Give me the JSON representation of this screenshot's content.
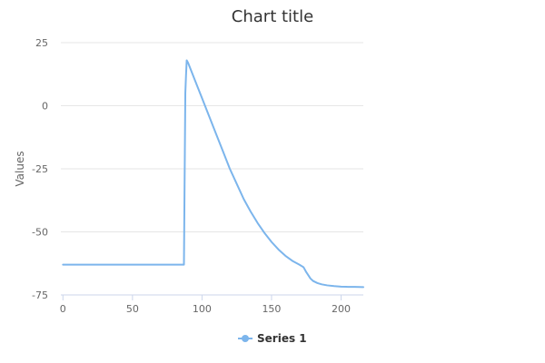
{
  "chart_data": {
    "type": "line",
    "title": "Chart title",
    "xlabel": "",
    "ylabel": "Values",
    "xlim": [
      -1.5,
      216
    ],
    "ylim": [
      -75,
      25
    ],
    "xticks": [
      0,
      50,
      100,
      150,
      200
    ],
    "yticks": [
      25,
      0,
      -25,
      -50,
      -75
    ],
    "xtick_labels": [
      "0",
      "50",
      "100",
      "150",
      "200"
    ],
    "ytick_labels": [
      "25",
      "0",
      "-25",
      "-50",
      "-75"
    ],
    "grid": "horizontal",
    "legend_position": "bottom-center",
    "series": [
      {
        "name": "Series 1",
        "color": "#7cb5ec",
        "x": [
          0,
          10,
          20,
          30,
          40,
          50,
          60,
          70,
          80,
          87,
          88,
          88.5,
          89,
          90,
          95,
          100,
          105,
          110,
          115,
          120,
          125,
          130,
          135,
          140,
          145,
          150,
          155,
          160,
          165,
          170,
          173,
          175,
          178,
          180,
          183,
          186,
          190,
          195,
          200,
          205,
          210,
          216
        ],
        "y": [
          -63,
          -63,
          -63,
          -63,
          -63,
          -63,
          -63,
          -63,
          -63,
          -63,
          5,
          12,
          18,
          17,
          10,
          3,
          -4,
          -11,
          -18,
          -25,
          -31,
          -37,
          -42,
          -46.5,
          -50.5,
          -54,
          -57,
          -59.5,
          -61.5,
          -63,
          -64,
          -66,
          -68.5,
          -69.5,
          -70.3,
          -70.8,
          -71.2,
          -71.5,
          -71.7,
          -71.8,
          -71.8,
          -71.9
        ]
      }
    ]
  }
}
